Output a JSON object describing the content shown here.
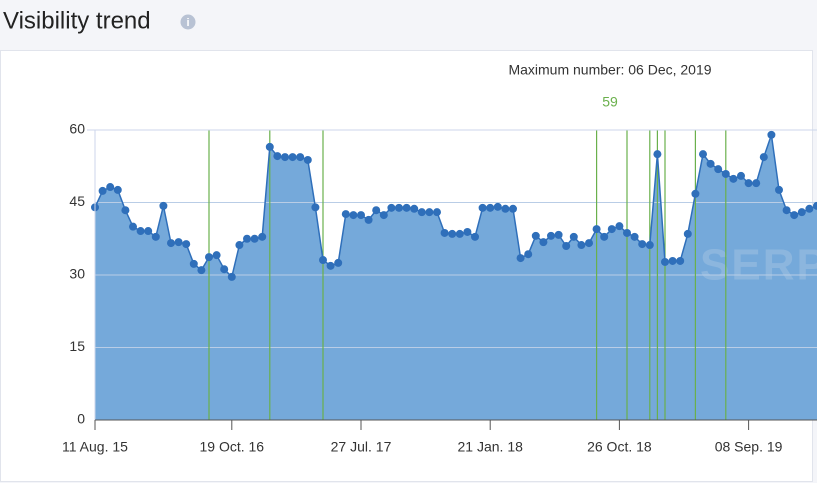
{
  "chart_data": {
    "type": "area",
    "title": "Visibility trend",
    "annotation": "Maximum number: 06 Dec, 2019",
    "annotation_value": 59,
    "watermark": "SERP",
    "categories": [
      "11 Aug. 15",
      null,
      null,
      null,
      null,
      null,
      null,
      null,
      null,
      null,
      null,
      null,
      null,
      null,
      null,
      null,
      null,
      null,
      "19 Oct. 16",
      null,
      null,
      null,
      null,
      null,
      null,
      null,
      null,
      null,
      null,
      null,
      null,
      null,
      null,
      null,
      null,
      "27 Jul. 17",
      null,
      null,
      null,
      null,
      null,
      null,
      null,
      null,
      null,
      null,
      null,
      null,
      null,
      null,
      null,
      null,
      "21 Jan. 18",
      null,
      null,
      null,
      null,
      null,
      null,
      null,
      null,
      null,
      null,
      null,
      null,
      null,
      null,
      null,
      null,
      "26 Oct. 18",
      null,
      null,
      null,
      null,
      null,
      null,
      null,
      null,
      null,
      null,
      null,
      null,
      null,
      null,
      null,
      null,
      "08 Sep. 19",
      null,
      null,
      null,
      null,
      null,
      null,
      null,
      null,
      null
    ],
    "series": [
      {
        "color": "#2f6fba",
        "fill": "#75a9da",
        "values": [
          44,
          47.4,
          48.2,
          47.6,
          43.4,
          40,
          39.1,
          39.1,
          37.9,
          44.3,
          36.6,
          36.8,
          36.4,
          32.3,
          31,
          33.7,
          34.1,
          31.2,
          29.6,
          36.2,
          37.5,
          37.5,
          37.9,
          56.5,
          54.6,
          54.4,
          54.4,
          54.4,
          53.8,
          44,
          33.1,
          31.9,
          32.5,
          42.6,
          42.4,
          42.4,
          41.4,
          43.4,
          42.4,
          43.9,
          43.9,
          43.9,
          43.7,
          43,
          43,
          43,
          38.7,
          38.5,
          38.5,
          38.9,
          37.9,
          43.9,
          43.9,
          44.1,
          43.7,
          43.7,
          33.5,
          34.3,
          38.1,
          36.8,
          38.1,
          38.3,
          36,
          37.9,
          36.2,
          36.6,
          39.5,
          37.9,
          39.5,
          40.1,
          38.7,
          37.9,
          36.4,
          36.2,
          55,
          32.7,
          32.9,
          32.9,
          38.5,
          46.8,
          55,
          53,
          51.9,
          50.9,
          49.9,
          50.5,
          49,
          49,
          54.4,
          59,
          47.6,
          43.4,
          42.4,
          43,
          43.7,
          44.3
        ]
      }
    ],
    "event_lines": [
      15,
      23,
      30,
      66,
      70,
      73,
      74,
      75,
      79,
      83
    ],
    "event_color": "#6ab04c",
    "ylim": [
      0,
      60
    ],
    "yticks": [
      0,
      15,
      30,
      45,
      60
    ],
    "grid": true
  }
}
